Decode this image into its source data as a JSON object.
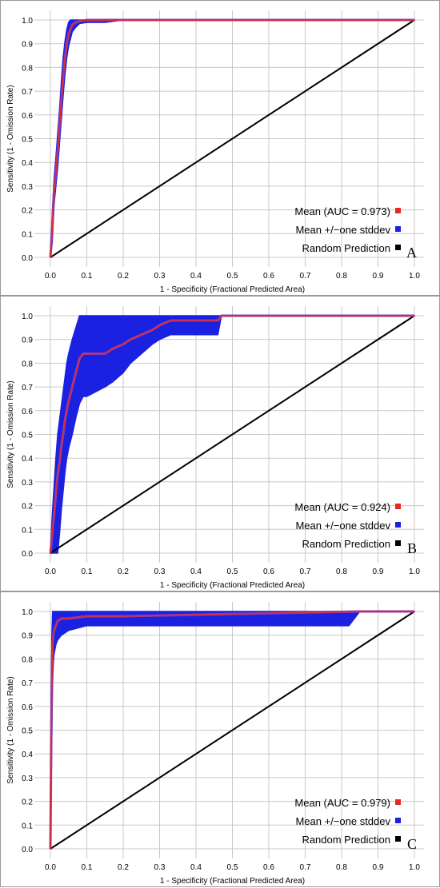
{
  "chart_data": [
    {
      "type": "line",
      "panel_label": "A",
      "xlabel": "1 - Specificity (Fractional Predicted Area)",
      "ylabel": "Sensitivity (1 - Omission Rate)",
      "xlim": [
        0,
        1
      ],
      "ylim": [
        0,
        1
      ],
      "xticks": [
        "0.0",
        "0.1",
        "0.2",
        "0.3",
        "0.4",
        "0.5",
        "0.6",
        "0.7",
        "0.8",
        "0.9",
        "1.0"
      ],
      "yticks": [
        "0.0",
        "0.1",
        "0.2",
        "0.3",
        "0.4",
        "0.5",
        "0.6",
        "0.7",
        "0.8",
        "0.9",
        "1.0"
      ],
      "grid": true,
      "legend_position": "bottom-right",
      "legend": [
        {
          "label": "Mean (AUC = 0.973)",
          "color": "#e8281e"
        },
        {
          "label": "Mean +/−one stddev",
          "color": "#1b21e0"
        },
        {
          "label": "Random Prediction",
          "color": "#000000"
        }
      ],
      "series": [
        {
          "name": "Mean (AUC = 0.973)",
          "x": [
            0,
            0.005,
            0.01,
            0.015,
            0.02,
            0.025,
            0.03,
            0.035,
            0.04,
            0.045,
            0.05,
            0.055,
            0.06,
            0.07,
            0.08,
            0.1,
            0.15,
            0.2,
            1.0
          ],
          "y": [
            0,
            0.12,
            0.28,
            0.36,
            0.45,
            0.55,
            0.66,
            0.76,
            0.84,
            0.9,
            0.94,
            0.96,
            0.98,
            0.99,
            0.995,
            1.0,
            1.0,
            1.0,
            1.0
          ]
        },
        {
          "name": "Mean +/−one stddev",
          "x": [
            0,
            0.005,
            0.01,
            0.015,
            0.02,
            0.025,
            0.03,
            0.035,
            0.04,
            0.045,
            0.05,
            0.055,
            0.06,
            0.07,
            0.08,
            0.1,
            0.15,
            0.2,
            1.0
          ],
          "upper": [
            0,
            0.18,
            0.33,
            0.42,
            0.52,
            0.62,
            0.74,
            0.84,
            0.91,
            0.96,
            0.99,
            1.0,
            1.0,
            1.0,
            1.0,
            1.0,
            1.0,
            1.0,
            1.0
          ],
          "lower": [
            0,
            0.06,
            0.22,
            0.3,
            0.38,
            0.48,
            0.58,
            0.68,
            0.77,
            0.84,
            0.89,
            0.92,
            0.95,
            0.97,
            0.985,
            0.99,
            0.99,
            1.0,
            1.0
          ]
        },
        {
          "name": "Random Prediction",
          "x": [
            0,
            1
          ],
          "y": [
            0,
            1
          ]
        }
      ]
    },
    {
      "type": "line",
      "panel_label": "B",
      "xlabel": "1 - Specificity (Fractional Predicted Area)",
      "ylabel": "Sensitivity (1 - Omission Rate)",
      "xlim": [
        0,
        1
      ],
      "ylim": [
        0,
        1
      ],
      "xticks": [
        "0.0",
        "0.1",
        "0.2",
        "0.3",
        "0.4",
        "0.5",
        "0.6",
        "0.7",
        "0.8",
        "0.9",
        "1.0"
      ],
      "yticks": [
        "0.0",
        "0.1",
        "0.2",
        "0.3",
        "0.4",
        "0.5",
        "0.6",
        "0.7",
        "0.8",
        "0.9",
        "1.0"
      ],
      "grid": true,
      "legend_position": "bottom-right",
      "legend": [
        {
          "label": "Mean (AUC = 0.924)",
          "color": "#e8281e"
        },
        {
          "label": "Mean +/−one stddev",
          "color": "#1b21e0"
        },
        {
          "label": "Random Prediction",
          "color": "#000000"
        }
      ],
      "series": [
        {
          "name": "Mean (AUC = 0.924)",
          "x": [
            0,
            0.005,
            0.01,
            0.015,
            0.02,
            0.025,
            0.03,
            0.035,
            0.04,
            0.045,
            0.05,
            0.06,
            0.07,
            0.08,
            0.09,
            0.1,
            0.15,
            0.17,
            0.2,
            0.22,
            0.25,
            0.28,
            0.3,
            0.33,
            0.46,
            0.47,
            1.0
          ],
          "y": [
            0,
            0.08,
            0.16,
            0.25,
            0.33,
            0.38,
            0.45,
            0.5,
            0.56,
            0.6,
            0.64,
            0.7,
            0.76,
            0.82,
            0.84,
            0.84,
            0.84,
            0.86,
            0.88,
            0.9,
            0.92,
            0.94,
            0.96,
            0.98,
            0.98,
            1.0,
            1.0
          ]
        },
        {
          "name": "Mean +/−one stddev",
          "x": [
            0,
            0.005,
            0.01,
            0.015,
            0.02,
            0.025,
            0.03,
            0.035,
            0.04,
            0.045,
            0.05,
            0.06,
            0.07,
            0.08,
            0.09,
            0.1,
            0.15,
            0.17,
            0.2,
            0.22,
            0.25,
            0.28,
            0.3,
            0.33,
            0.46,
            0.47,
            1.0
          ],
          "upper": [
            0,
            0.16,
            0.28,
            0.4,
            0.5,
            0.56,
            0.62,
            0.68,
            0.74,
            0.8,
            0.84,
            0.9,
            0.95,
            1.0,
            1.0,
            1.0,
            1.0,
            1.0,
            1.0,
            1.0,
            1.0,
            1.0,
            1.0,
            1.0,
            1.0,
            1.0,
            1.0
          ],
          "lower": [
            0,
            0,
            0,
            0,
            0,
            0.08,
            0.18,
            0.26,
            0.34,
            0.4,
            0.44,
            0.5,
            0.57,
            0.63,
            0.66,
            0.66,
            0.7,
            0.72,
            0.76,
            0.8,
            0.84,
            0.88,
            0.9,
            0.92,
            0.92,
            1.0,
            1.0
          ]
        },
        {
          "name": "Random Prediction",
          "x": [
            0,
            1
          ],
          "y": [
            0,
            1
          ]
        }
      ]
    },
    {
      "type": "line",
      "panel_label": "C",
      "xlabel": "1 - Specificity (Fractional Predicted Area)",
      "ylabel": "Sensitivity (1 - Omission Rate)",
      "xlim": [
        0,
        1
      ],
      "ylim": [
        0,
        1
      ],
      "xticks": [
        "0.0",
        "0.1",
        "0.2",
        "0.3",
        "0.4",
        "0.5",
        "0.6",
        "0.7",
        "0.8",
        "0.9",
        "1.0"
      ],
      "yticks": [
        "0.0",
        "0.1",
        "0.2",
        "0.3",
        "0.4",
        "0.5",
        "0.6",
        "0.7",
        "0.8",
        "0.9",
        "1.0"
      ],
      "grid": true,
      "legend_position": "bottom-right",
      "legend": [
        {
          "label": "Mean (AUC = 0.979)",
          "color": "#e8281e"
        },
        {
          "label": "Mean +/−one stddev",
          "color": "#1b21e0"
        },
        {
          "label": "Random Prediction",
          "color": "#000000"
        }
      ],
      "series": [
        {
          "name": "Mean (AUC = 0.979)",
          "x": [
            0,
            0.002,
            0.004,
            0.006,
            0.008,
            0.01,
            0.015,
            0.02,
            0.03,
            0.05,
            0.1,
            0.2,
            0.85,
            1.0
          ],
          "y": [
            0,
            0.4,
            0.7,
            0.86,
            0.9,
            0.92,
            0.94,
            0.96,
            0.97,
            0.97,
            0.98,
            0.98,
            1.0,
            1.0
          ]
        },
        {
          "name": "Mean +/−one stddev",
          "x": [
            0,
            0.002,
            0.004,
            0.006,
            0.008,
            0.01,
            0.015,
            0.02,
            0.03,
            0.05,
            0.1,
            0.2,
            0.82,
            0.85,
            1.0
          ],
          "upper": [
            0,
            0.6,
            0.9,
            1.0,
            1.0,
            1.0,
            1.0,
            1.0,
            1.0,
            1.0,
            1.0,
            1.0,
            1.0,
            1.0,
            1.0
          ],
          "lower": [
            0,
            0.2,
            0.5,
            0.7,
            0.78,
            0.82,
            0.86,
            0.88,
            0.9,
            0.92,
            0.94,
            0.94,
            0.94,
            1.0,
            1.0
          ]
        },
        {
          "name": "Random Prediction",
          "x": [
            0,
            1
          ],
          "y": [
            0,
            1
          ]
        }
      ]
    }
  ]
}
